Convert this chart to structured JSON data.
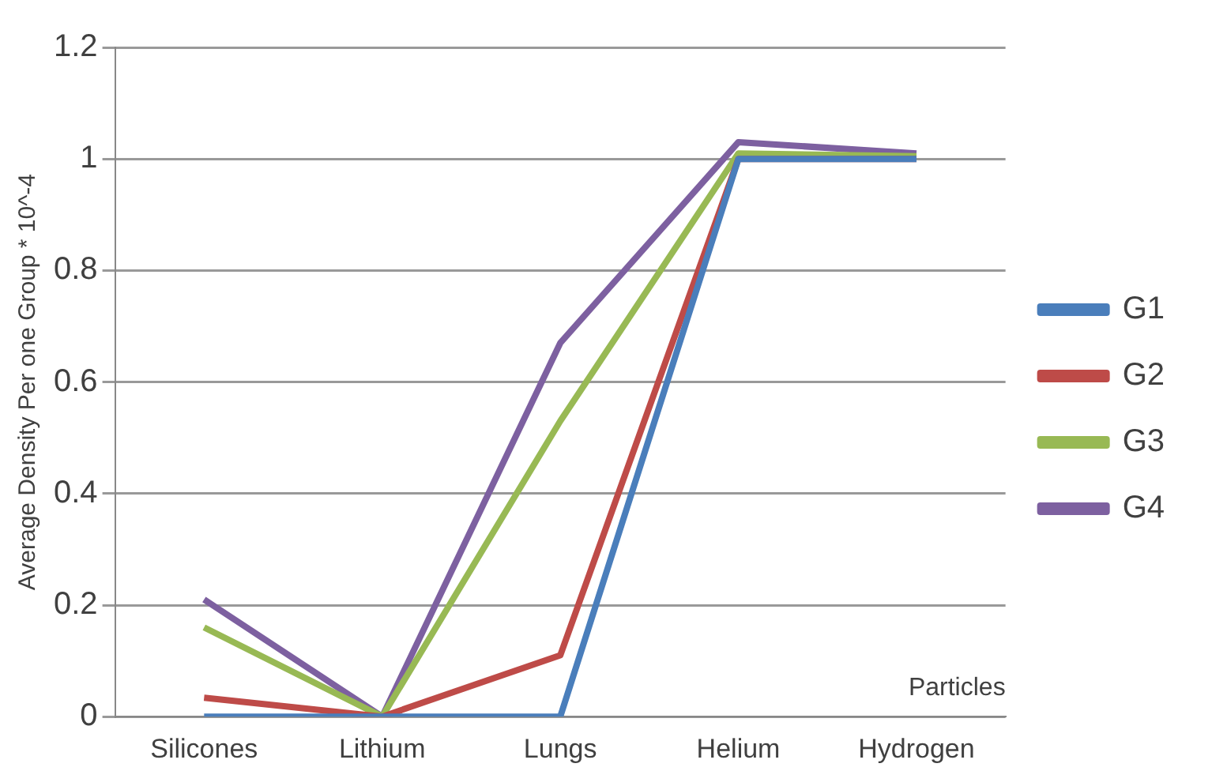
{
  "chart_data": {
    "type": "line",
    "xlabel": "Particles",
    "ylabel": "Average Density Per one Group * 10^-4",
    "categories": [
      "Silicones",
      "Lithium",
      "Lungs",
      "Helium",
      "Hydrogen"
    ],
    "series": [
      {
        "name": "G1",
        "color": "#4a7ebb",
        "values": [
          0,
          0,
          0,
          1.0,
          1.0
        ]
      },
      {
        "name": "G2",
        "color": "#be4b48",
        "values": [
          0.034,
          0,
          0.11,
          1.0,
          1.0
        ]
      },
      {
        "name": "G3",
        "color": "#98b954",
        "values": [
          0.16,
          0,
          0.53,
          1.01,
          1.005
        ]
      },
      {
        "name": "G4",
        "color": "#7d60a0",
        "values": [
          0.21,
          0,
          0.67,
          1.03,
          1.01
        ]
      }
    ],
    "ylim": [
      0,
      1.2
    ],
    "yticks": [
      0,
      0.2,
      0.4,
      0.6,
      0.8,
      1,
      1.2
    ],
    "grid": "y",
    "legend": "right",
    "marker": "none",
    "line_style": "solid"
  }
}
